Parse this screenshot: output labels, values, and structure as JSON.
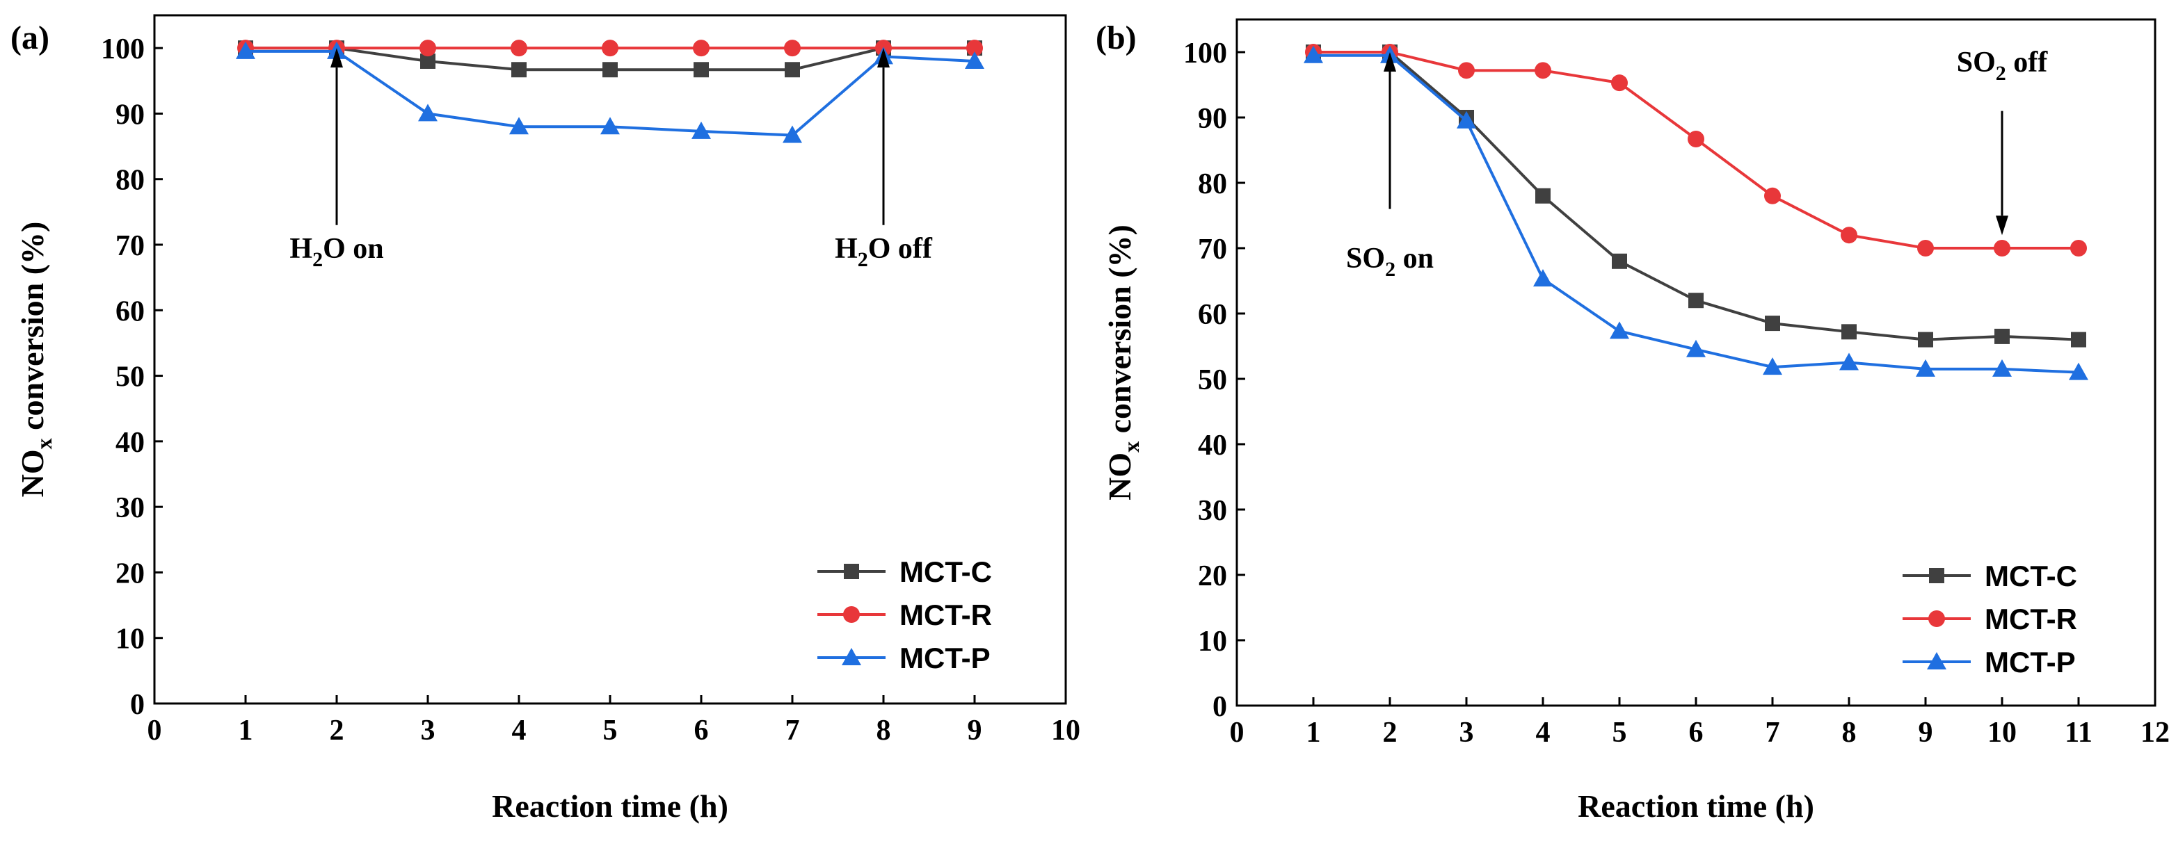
{
  "chart_data": [
    {
      "type": "line",
      "panel_label": "(a)",
      "xlabel": "Reaction time (h)",
      "ylabel": "NOx conversion (%)",
      "xlim": [
        0,
        10
      ],
      "ylim": [
        0,
        105
      ],
      "xticks": [
        0,
        1,
        2,
        3,
        4,
        5,
        6,
        7,
        8,
        9,
        10
      ],
      "yticks": [
        0,
        10,
        20,
        30,
        40,
        50,
        60,
        70,
        80,
        90,
        100
      ],
      "legend_position": "bottom-right",
      "series": [
        {
          "name": "MCT-C",
          "color": "#404040",
          "marker": "square",
          "x": [
            1,
            2,
            3,
            4,
            5,
            6,
            7,
            8,
            9
          ],
          "values": [
            100,
            100,
            98,
            96.7,
            96.7,
            96.7,
            96.7,
            100,
            100
          ]
        },
        {
          "name": "MCT-R",
          "color": "#e8373a",
          "marker": "circle",
          "x": [
            1,
            2,
            3,
            4,
            5,
            6,
            7,
            8,
            9
          ],
          "values": [
            100,
            100,
            100,
            100,
            100,
            100,
            100,
            100,
            100
          ]
        },
        {
          "name": "MCT-P",
          "color": "#1f6fe0",
          "marker": "triangle",
          "x": [
            1,
            2,
            3,
            4,
            5,
            6,
            7,
            8,
            9
          ],
          "values": [
            99.5,
            99.5,
            90,
            88,
            88,
            87.3,
            86.7,
            98.7,
            98
          ]
        }
      ],
      "annotations": [
        {
          "label": "H2O on",
          "text_main": "H",
          "text_sub": "2",
          "text_tail": "O on",
          "x": 2,
          "arrow_to_y": 100,
          "arrow_from_y": 73,
          "text_y": 68
        },
        {
          "label": "H2O off",
          "text_main": "H",
          "text_sub": "2",
          "text_tail": "O off",
          "x": 8,
          "arrow_to_y": 100,
          "arrow_from_y": 73,
          "text_y": 68
        }
      ]
    },
    {
      "type": "line",
      "panel_label": "(b)",
      "xlabel": "Reaction time (h)",
      "ylabel": "NOx conversion (%)",
      "xlim": [
        0,
        12
      ],
      "ylim": [
        0,
        105
      ],
      "xticks": [
        0,
        1,
        2,
        3,
        4,
        5,
        6,
        7,
        8,
        9,
        10,
        11,
        12
      ],
      "yticks": [
        0,
        10,
        20,
        30,
        40,
        50,
        60,
        70,
        80,
        90,
        100
      ],
      "legend_position": "bottom-right",
      "series": [
        {
          "name": "MCT-C",
          "color": "#404040",
          "marker": "square",
          "x": [
            1,
            2,
            3,
            4,
            5,
            6,
            7,
            8,
            9,
            10,
            11
          ],
          "values": [
            100,
            100,
            90,
            78,
            68,
            62,
            58.5,
            57.2,
            56,
            56.5,
            56
          ]
        },
        {
          "name": "MCT-R",
          "color": "#e8373a",
          "marker": "circle",
          "x": [
            1,
            2,
            3,
            4,
            5,
            6,
            7,
            8,
            9,
            10,
            11
          ],
          "values": [
            100,
            100,
            97.2,
            97.2,
            95.3,
            86.7,
            78,
            72,
            70,
            70,
            70
          ]
        },
        {
          "name": "MCT-P",
          "color": "#1f6fe0",
          "marker": "triangle",
          "x": [
            1,
            2,
            3,
            4,
            5,
            6,
            7,
            8,
            9,
            10,
            11
          ],
          "values": [
            99.5,
            99.5,
            89.5,
            65.3,
            57.3,
            54.5,
            51.8,
            52.5,
            51.5,
            51.5,
            51
          ]
        }
      ],
      "annotations": [
        {
          "label": "SO2 on",
          "text_main": "SO",
          "text_sub": "2",
          "text_tail": " on",
          "x": 2,
          "arrow_to_y": 100,
          "arrow_from_y": 76,
          "text_y": 67
        },
        {
          "label": "SO2 off",
          "text_main": "SO",
          "text_sub": "2",
          "text_tail": " off",
          "x": 10,
          "arrow_to_y": 72,
          "arrow_from_y": 91,
          "text_y": 97
        }
      ]
    }
  ]
}
